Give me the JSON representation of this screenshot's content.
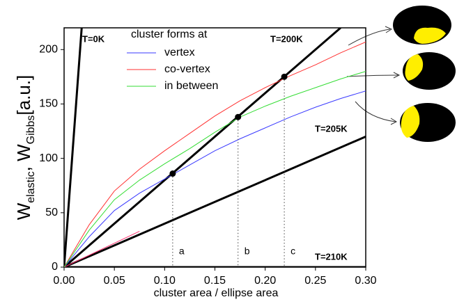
{
  "chart_data": {
    "type": "line",
    "x_label": "cluster area / ellipse area",
    "y_label_parts": [
      {
        "text": "W",
        "sub": false
      },
      {
        "text": "elastic",
        "sub": true
      },
      {
        "text": ", W",
        "sub": false
      },
      {
        "text": "Gibbs",
        "sub": true
      },
      {
        "text": "[a.u.]",
        "sub": false
      }
    ],
    "legend_title": "cluster forms at",
    "xlim": [
      0,
      0.3
    ],
    "xticks": [
      {
        "value": 0,
        "label": "0.00"
      },
      {
        "value": 0.05,
        "label": "0.05"
      },
      {
        "value": 0.1,
        "label": "0.10"
      },
      {
        "value": 0.15,
        "label": "0.15"
      },
      {
        "value": 0.2,
        "label": "0.20"
      },
      {
        "value": 0.25,
        "label": "0.25"
      },
      {
        "value": 0.3,
        "label": "0.30"
      }
    ],
    "ylim": [
      0,
      220
    ],
    "yticks": [
      0,
      50,
      100,
      150,
      200
    ],
    "series": [
      {
        "name": "vertex",
        "color": "#3a3aff",
        "x": [
          0,
          0.025,
          0.05,
          0.075,
          0.1,
          0.125,
          0.15,
          0.175,
          0.2,
          0.225,
          0.25,
          0.275,
          0.3
        ],
        "values": [
          0,
          28,
          52,
          68,
          81,
          94,
          107,
          118,
          128,
          138,
          147,
          155,
          162
        ]
      },
      {
        "name": "co-vertex",
        "color": "#ff3030",
        "x": [
          0,
          0.025,
          0.05,
          0.075,
          0.1,
          0.125,
          0.15,
          0.175,
          0.2,
          0.225,
          0.25,
          0.275,
          0.3
        ],
        "values": [
          0,
          39,
          70,
          90,
          107,
          123,
          139,
          153,
          165,
          176,
          186,
          197,
          207
        ]
      },
      {
        "name": "in between",
        "color": "#33dd33",
        "x": [
          0,
          0.025,
          0.05,
          0.075,
          0.1,
          0.125,
          0.15,
          0.175,
          0.2,
          0.225,
          0.25,
          0.275,
          0.3
        ],
        "values": [
          0,
          34,
          62,
          80,
          95,
          109,
          124,
          138,
          148,
          157,
          165,
          173,
          180
        ]
      }
    ],
    "reference_lines": [
      {
        "label": "T=0K",
        "color": "#000000",
        "x": [
          0,
          0.0175
        ],
        "values": [
          0,
          220
        ]
      },
      {
        "label": "T=200K",
        "color": "#000000",
        "x": [
          0,
          0.275
        ],
        "values": [
          0,
          220
        ]
      },
      {
        "label": "T=205K",
        "color": "#000000",
        "x": [
          0,
          0.3
        ],
        "values": [
          0,
          120
        ]
      },
      {
        "label": "T=210K",
        "color": "#000000",
        "x": [
          0,
          0.3
        ],
        "values": [
          0,
          0
        ]
      },
      {
        "color": "#ff3070",
        "x": [
          0,
          0.075
        ],
        "values": [
          0,
          33
        ]
      }
    ],
    "points": {
      "x": [
        0.108,
        0.173,
        0.219
      ],
      "values": [
        86,
        138,
        175
      ],
      "labels": [
        "a",
        "b",
        "c"
      ]
    }
  }
}
